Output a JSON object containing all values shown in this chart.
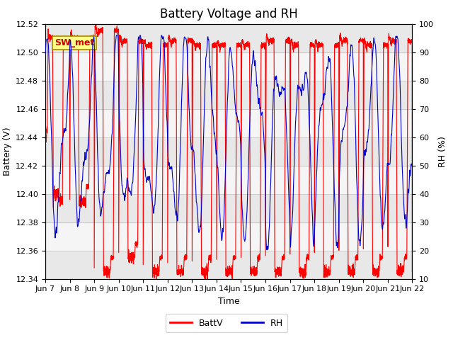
{
  "title": "Battery Voltage and RH",
  "xlabel": "Time",
  "ylabel_left": "Battery (V)",
  "ylabel_right": "RH (%)",
  "annotation": "SW_met",
  "batt_ylim": [
    12.34,
    12.52
  ],
  "rh_ylim": [
    10,
    100
  ],
  "batt_yticks": [
    12.34,
    12.36,
    12.38,
    12.4,
    12.42,
    12.44,
    12.46,
    12.48,
    12.5,
    12.52
  ],
  "rh_yticks": [
    10,
    20,
    30,
    40,
    50,
    60,
    70,
    80,
    90,
    100
  ],
  "x_tick_labels": [
    "Jun 7",
    "Jun 8",
    "Jun 9",
    "Jun 10",
    "Jun 11",
    "Jun 12",
    "Jun 13",
    "Jun 14",
    "Jun 15",
    "Jun 16",
    "Jun 17",
    "Jun 18",
    "Jun 19",
    "Jun 20",
    "Jun 21",
    "Jun 22"
  ],
  "legend_labels": [
    "BattV",
    "RH"
  ],
  "batt_color": "#ff0000",
  "rh_color": "#0000cc",
  "bg_color": "#ffffff",
  "band_color_dark": "#e8e8e8",
  "band_color_light": "#f5f5f5",
  "annotation_bg": "#ffff88",
  "annotation_border": "#aa8800",
  "annotation_text_color": "#cc0000",
  "title_fontsize": 12,
  "axis_label_fontsize": 9,
  "tick_fontsize": 8,
  "legend_fontsize": 9
}
